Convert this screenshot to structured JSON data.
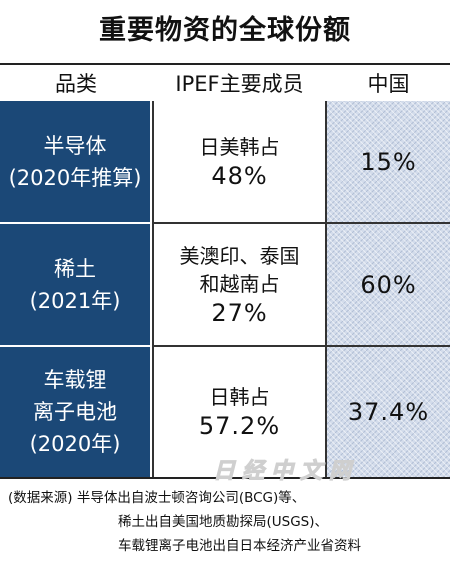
{
  "title": "重要物资的全球份额",
  "headers": {
    "category": "品类",
    "ipef": "IPEF主要成员",
    "china": "中国"
  },
  "rows": [
    {
      "category_lines": [
        "半导体",
        "(2020年推算)"
      ],
      "ipef_lines": [
        "日美韩占"
      ],
      "ipef_share": "48%",
      "china_share": "15%"
    },
    {
      "category_lines": [
        "稀土",
        "(2021年)"
      ],
      "ipef_lines": [
        "美澳印、泰国",
        "和越南占"
      ],
      "ipef_share": "27%",
      "china_share": "60%"
    },
    {
      "category_lines": [
        "车载锂",
        "离子电池",
        "(2020年)"
      ],
      "ipef_lines": [
        "日韩占"
      ],
      "ipef_share": "57.2%",
      "china_share": "37.4%"
    }
  ],
  "watermark": "日经中文网",
  "source": {
    "prefix": "(数据来源)",
    "line1": "半导体出自波士顿咨询公司(BCG)等、",
    "line2": "稀土出自美国地质勘探局(USGS)、",
    "line3": "车载锂离子电池出自日本经济产业省资料"
  },
  "colors": {
    "category_bg": "#1b4877",
    "china_bg": "#d3dceb"
  }
}
